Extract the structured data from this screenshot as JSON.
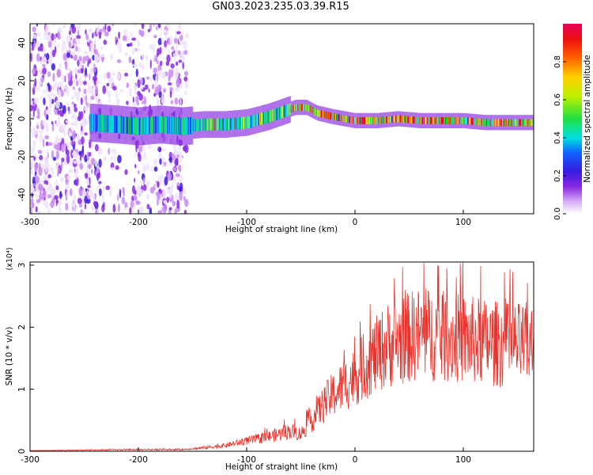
{
  "title": "GN03.2023.235.03.39.R15",
  "colors": {
    "snr_line": "#e8322b",
    "spectrum_ramp": [
      "#f0e4fb",
      "#c98cf2",
      "#8a2be2",
      "#3a1ae0",
      "#1060ff",
      "#00e0e0",
      "#20e040",
      "#e8e820",
      "#ff8000",
      "#ee1010",
      "#e6005a"
    ]
  },
  "chart_data": [
    {
      "type": "heatmap",
      "xlabel": "Height of straight line (km)",
      "ylabel": "Frequency (Hz)",
      "xlim": [
        -300,
        165
      ],
      "ylim": [
        -50,
        50
      ],
      "xticks": [
        -300,
        -200,
        -100,
        0,
        100
      ],
      "yticks": [
        -40,
        -20,
        0,
        20,
        40
      ],
      "colorbar": {
        "label": "Normalized spectral amplitude",
        "range": [
          0.0,
          1.0
        ],
        "ticks": [
          "0.0",
          "0.2",
          "0.4",
          "0.6",
          "0.8"
        ]
      },
      "ridge": {
        "x": [
          -245,
          -220,
          -200,
          -180,
          -160,
          -140,
          -120,
          -100,
          -80,
          -65,
          -55,
          -45,
          -35,
          -20,
          0,
          20,
          40,
          60,
          80,
          100,
          120,
          140,
          165
        ],
        "y": [
          -2,
          -3,
          -4,
          -3,
          -4,
          -3,
          -3,
          -2,
          1,
          4,
          6,
          6,
          3,
          1,
          -1,
          -1,
          0,
          -1,
          -1,
          -1,
          -2,
          -2,
          -2
        ]
      },
      "noise_region": [
        -300,
        -155
      ]
    },
    {
      "type": "line",
      "xlabel": "Height of straight line (km)",
      "ylabel": "SNR (10 * v/v)",
      "multiplier": "(x10⁴)",
      "xlim": [
        -300,
        165
      ],
      "ylim": [
        0,
        3.05
      ],
      "xticks": [
        -300,
        -200,
        -100,
        0,
        100
      ],
      "yticks": [
        0,
        1,
        2,
        3
      ],
      "envelope": {
        "x": [
          -300,
          -250,
          -200,
          -160,
          -140,
          -120,
          -100,
          -80,
          -60,
          -50,
          -40,
          -25,
          -10,
          0,
          15,
          30,
          45,
          60,
          80,
          100,
          120,
          140,
          165
        ],
        "y": [
          0.01,
          0.02,
          0.03,
          0.03,
          0.06,
          0.1,
          0.18,
          0.25,
          0.35,
          0.3,
          0.55,
          0.9,
          1.15,
          1.3,
          1.6,
          1.85,
          1.95,
          2.05,
          2.0,
          1.95,
          1.9,
          1.85,
          1.85
        ]
      }
    }
  ]
}
